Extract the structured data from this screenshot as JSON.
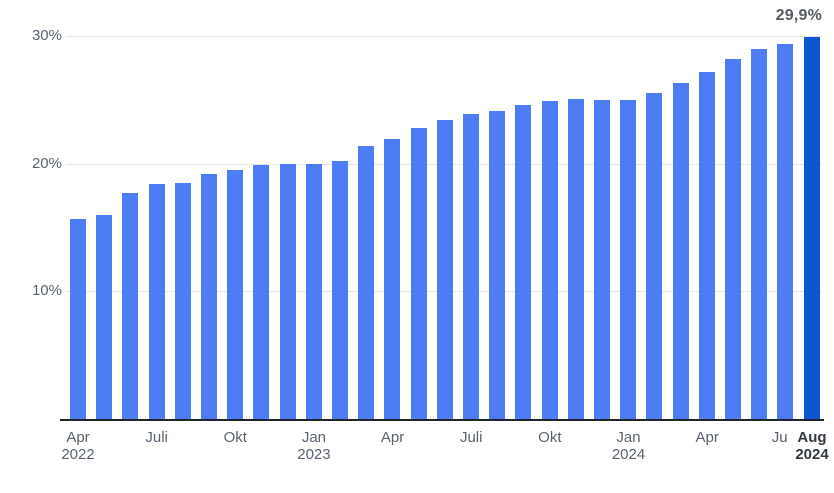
{
  "chart_data": {
    "type": "bar",
    "title": "",
    "unit": "%",
    "categories": [
      "Apr 2022",
      "Mai 2022",
      "Jun 2022",
      "Jul 2022",
      "Aug 2022",
      "Sep 2022",
      "Okt 2022",
      "Nov 2022",
      "Dez 2022",
      "Jan 2023",
      "Feb 2023",
      "Mär 2023",
      "Apr 2023",
      "Mai 2023",
      "Jun 2023",
      "Jul 2023",
      "Aug 2023",
      "Sep 2023",
      "Okt 2023",
      "Nov 2023",
      "Dez 2023",
      "Jan 2024",
      "Feb 2024",
      "Mär 2024",
      "Apr 2024",
      "Mai 2024",
      "Jun 2024",
      "Jul 2024",
      "Aug 2024"
    ],
    "values": [
      15.7,
      16.0,
      17.7,
      18.4,
      18.5,
      19.2,
      19.5,
      19.9,
      20.0,
      20.0,
      20.2,
      21.4,
      21.9,
      22.8,
      23.4,
      23.9,
      24.1,
      24.6,
      24.9,
      25.1,
      25.0,
      25.0,
      25.5,
      26.3,
      27.2,
      28.2,
      29.0,
      29.4,
      29.9
    ],
    "highlight_index": 28,
    "annotation": "29,9%",
    "ylim": [
      0,
      30
    ],
    "grid": "horizontal",
    "legend": null,
    "y_ticks": [
      {
        "value": 30,
        "label": "30%"
      },
      {
        "value": 20,
        "label": "20%"
      },
      {
        "value": 10,
        "label": "10%"
      }
    ],
    "x_ticks": [
      {
        "index": 0,
        "line1": "Apr",
        "line2": "2022"
      },
      {
        "index": 3,
        "line1": "Juli"
      },
      {
        "index": 6,
        "line1": "Okt"
      },
      {
        "index": 9,
        "line1": "Jan",
        "line2": "2023"
      },
      {
        "index": 12,
        "line1": "Apr"
      },
      {
        "index": 15,
        "line1": "Juli"
      },
      {
        "index": 18,
        "line1": "Okt"
      },
      {
        "index": 21,
        "line1": "Jan",
        "line2": "2024"
      },
      {
        "index": 24,
        "line1": "Apr"
      },
      {
        "index": 27,
        "line1": "Juli",
        "truncated": true
      },
      {
        "index": 28,
        "line1": "Aug",
        "line2": "2024",
        "bold": true
      }
    ],
    "colors": {
      "bar": "#4e7cf5",
      "highlight": "#0b57d0",
      "grid": "#e5e5e5",
      "axis": "#20242c",
      "tick_label": "#5b6370",
      "bold_tick_label": "#343a42",
      "annotation": "#565b63"
    }
  }
}
